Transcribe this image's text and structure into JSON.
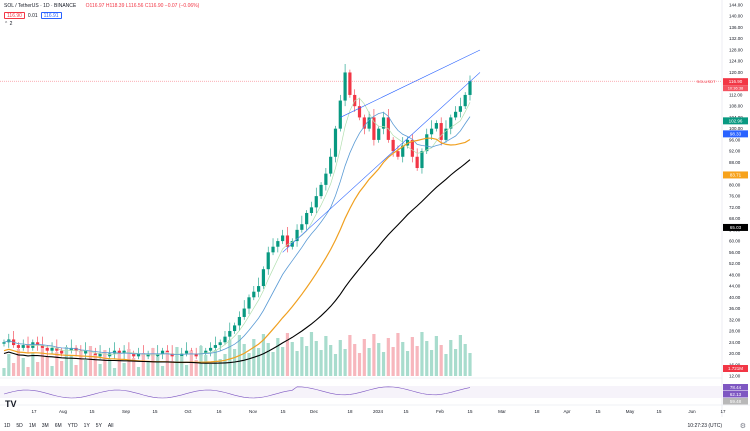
{
  "legend": {
    "symbol": "SOL / TetherUS · 1D · BINANCE",
    "ohlc": "O116.97 H118.39 L116.56 C116.90 −0.07 (−0.06%)",
    "bid": "116.90",
    "spread": "0.01",
    "ask": "116.91",
    "indicator_count": "2"
  },
  "price_axis": [
    "144.00",
    "140.00",
    "136.00",
    "132.00",
    "128.00",
    "124.00",
    "120.00",
    "116.00",
    "112.00",
    "108.00",
    "104.00",
    "100.00",
    "96.00",
    "92.00",
    "88.00",
    "84.00",
    "80.00",
    "76.00",
    "72.00",
    "68.00",
    "64.00",
    "60.00",
    "56.00",
    "52.00",
    "48.00",
    "44.00",
    "40.00",
    "36.00",
    "32.00",
    "28.00",
    "24.00",
    "20.00",
    "16.00",
    "12.00"
  ],
  "price_labels": [
    {
      "symbol_label": "SOLUSDT",
      "value": "116.90",
      "sub": "10:36:38",
      "color": "#f23645"
    },
    {
      "value": "102.96",
      "color": "#089981"
    },
    {
      "value": "98.33",
      "color": "#2962ff"
    },
    {
      "value": "83.71",
      "color": "#f7a21b"
    },
    {
      "value": "65.03",
      "color": "#000000"
    },
    {
      "value": "1.721M",
      "color": "#f23645"
    }
  ],
  "rsi_labels": [
    {
      "value": "78.44",
      "color": "#7e57c2"
    },
    {
      "value": "62.13",
      "color": "#7e57c2"
    },
    {
      "value": "59.48",
      "color": "#b8b8b8"
    }
  ],
  "time_axis": [
    "17",
    "Aug",
    "15",
    "Sep",
    "15",
    "Oct",
    "16",
    "Nov",
    "15",
    "Dec",
    "18",
    "2024",
    "15",
    "Feb",
    "15",
    "Mar",
    "18",
    "Apr",
    "15",
    "May",
    "15",
    "Jun",
    "17"
  ],
  "timeframes": [
    "1D",
    "5D",
    "1M",
    "3M",
    "6M",
    "YTD",
    "1Y",
    "5Y",
    "All"
  ],
  "clock": "10:27:23 (UTC)",
  "colors": {
    "up": "#089981",
    "down": "#f23645",
    "ma20": "#b2dfb0",
    "ma50": "#5b9bd5",
    "ma100": "#f0a020",
    "ma200": "#000000",
    "rsi": "#7e57c2"
  },
  "chart_data": {
    "type": "candlestick",
    "title": "SOL / TetherUS · 1D · BINANCE",
    "ylim": [
      12,
      144
    ],
    "closes": [
      24,
      25,
      23,
      22,
      23,
      22,
      24,
      23,
      22,
      21,
      22,
      21,
      20,
      21,
      22,
      21,
      20,
      21,
      20,
      19,
      20,
      19,
      20,
      21,
      20,
      21,
      20,
      19,
      20,
      19,
      20,
      19,
      20,
      21,
      20,
      19,
      19,
      20,
      21,
      20,
      19,
      20,
      21,
      22,
      23,
      24,
      26,
      28,
      30,
      33,
      36,
      40,
      42,
      44,
      50,
      56,
      58,
      60,
      62,
      58,
      60,
      64,
      66,
      70,
      72,
      76,
      80,
      84,
      90,
      100,
      110,
      120,
      112,
      108,
      104,
      100,
      104,
      96,
      100,
      104,
      96,
      92,
      90,
      94,
      96,
      90,
      86,
      92,
      98,
      100,
      102,
      96,
      100,
      104,
      106,
      108,
      112,
      116.9
    ],
    "ma_labels": [
      "MA20 102.96",
      "MA50 98.33",
      "MA100 83.71",
      "MA200 65.03"
    ]
  }
}
